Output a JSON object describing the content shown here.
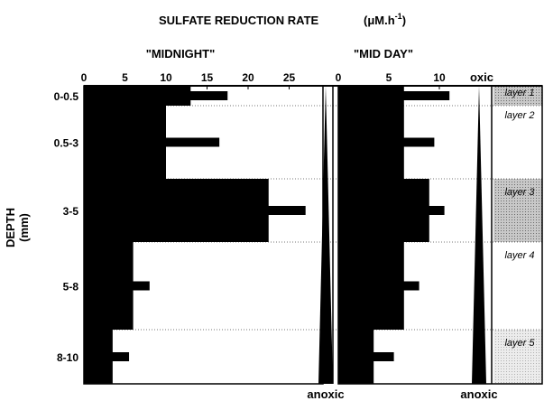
{
  "chart_data": {
    "type": "bar",
    "title": "SULFATE REDUCTION RATE",
    "title_unit": "(μM.h",
    "title_unit_sup": "-1",
    "title_unit_close": ")",
    "ylabel_line1": "DEPTH",
    "ylabel_line2": "(mm)",
    "depth_categories": [
      "0-0.5",
      "0.5-3",
      "3-5",
      "5-8",
      "8-10"
    ],
    "depth_ranges_mm": [
      [
        0,
        0.5
      ],
      [
        0.5,
        3
      ],
      [
        3,
        5
      ],
      [
        5,
        8
      ],
      [
        8,
        10
      ]
    ],
    "panels": [
      {
        "name": "\"MIDNIGHT\"",
        "xlim": [
          0,
          30
        ],
        "ticks": [
          0,
          5,
          10,
          15,
          20,
          25
        ],
        "cumulative_values": [
          13,
          10,
          22.5,
          6,
          3.5
        ],
        "rate_values": [
          17.5,
          16.5,
          27,
          8,
          5.5
        ],
        "oxic_label": "",
        "anoxic_label": "anoxic"
      },
      {
        "name": "\"MID DAY\"",
        "xlim": [
          0,
          15
        ],
        "ticks": [
          0,
          5,
          10
        ],
        "cumulative_values": [
          6.5,
          6.5,
          9,
          6.5,
          3.5
        ],
        "rate_values": [
          11,
          9.5,
          10.5,
          8,
          5.5
        ],
        "oxic_label": "oxic",
        "anoxic_label": "anoxic"
      }
    ],
    "layers": [
      {
        "label": "layer 1",
        "range_mm": [
          0,
          0.5
        ],
        "shade": "#9a9a9a"
      },
      {
        "label": "layer 2",
        "range_mm": [
          0.5,
          3
        ],
        "shade": "#ffffff"
      },
      {
        "label": "layer 3",
        "range_mm": [
          3,
          5
        ],
        "shade": "#8f8f8f"
      },
      {
        "label": "layer 4",
        "range_mm": [
          5,
          8
        ],
        "shade": "#ffffff"
      },
      {
        "label": "layer 5",
        "range_mm": [
          8,
          10
        ],
        "shade": "#e2e2e2"
      }
    ],
    "bar_color": "#000000",
    "grid": "dotted-row-separators"
  }
}
